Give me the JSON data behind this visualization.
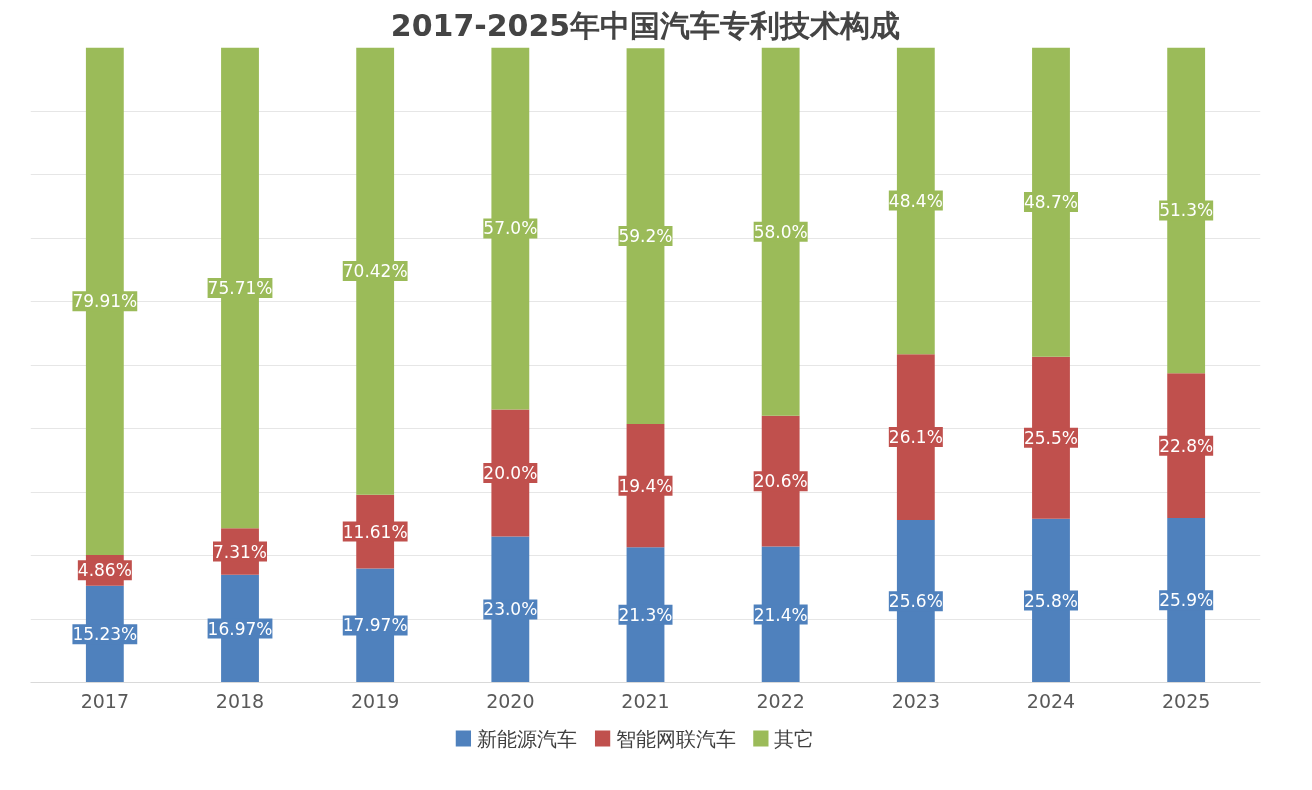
{
  "chart_data": {
    "type": "bar",
    "title": "2017-2025年中国汽车专利技术构成",
    "categories": [
      "2017",
      "2018",
      "2019",
      "2020",
      "2021",
      "2022",
      "2023",
      "2024",
      "2025"
    ],
    "stacked": true,
    "data_labels": true,
    "grid": "y",
    "legend": "bottom",
    "tick_labels": "x",
    "ylim": [
      0,
      100
    ],
    "yticks": [
      {
        "value": 0,
        "label": null
      },
      {
        "value": 10,
        "label": null
      },
      {
        "value": 20,
        "label": null
      },
      {
        "value": 30,
        "label": null
      },
      {
        "value": 40,
        "label": null
      },
      {
        "value": 50,
        "label": null
      },
      {
        "value": 60,
        "label": null
      },
      {
        "value": 70,
        "label": null
      },
      {
        "value": 80,
        "label": null
      },
      {
        "value": 90,
        "label": null
      }
    ],
    "series": [
      {
        "name": "新能源汽车",
        "color": "#4f81bd",
        "values": [
          15.23,
          16.97,
          17.97,
          23.0,
          21.3,
          21.4,
          25.6,
          25.8,
          25.9
        ],
        "value_labels": [
          "15.23%",
          "16.97%",
          "17.97%",
          "23.0%",
          "21.3%",
          "21.4%",
          "25.6%",
          "25.8%",
          "25.9%"
        ]
      },
      {
        "name": "智能网联汽车",
        "color": "#c0504d",
        "values": [
          4.86,
          7.31,
          11.61,
          20.0,
          19.4,
          20.6,
          26.1,
          25.5,
          22.8
        ],
        "value_labels": [
          "4.86%",
          "7.31%",
          "11.61%",
          "20.0%",
          "19.4%",
          "20.6%",
          "26.1%",
          "25.5%",
          "22.8%"
        ]
      },
      {
        "name": "其它",
        "color": "#9bbb59",
        "values": [
          79.91,
          75.71,
          70.42,
          57.0,
          59.2,
          58.0,
          48.4,
          48.7,
          51.3
        ],
        "value_labels": [
          "79.91%",
          "75.71%",
          "70.42%",
          "57.0%",
          "59.2%",
          "58.0%",
          "48.4%",
          "48.7%",
          "51.3%"
        ]
      }
    ]
  }
}
